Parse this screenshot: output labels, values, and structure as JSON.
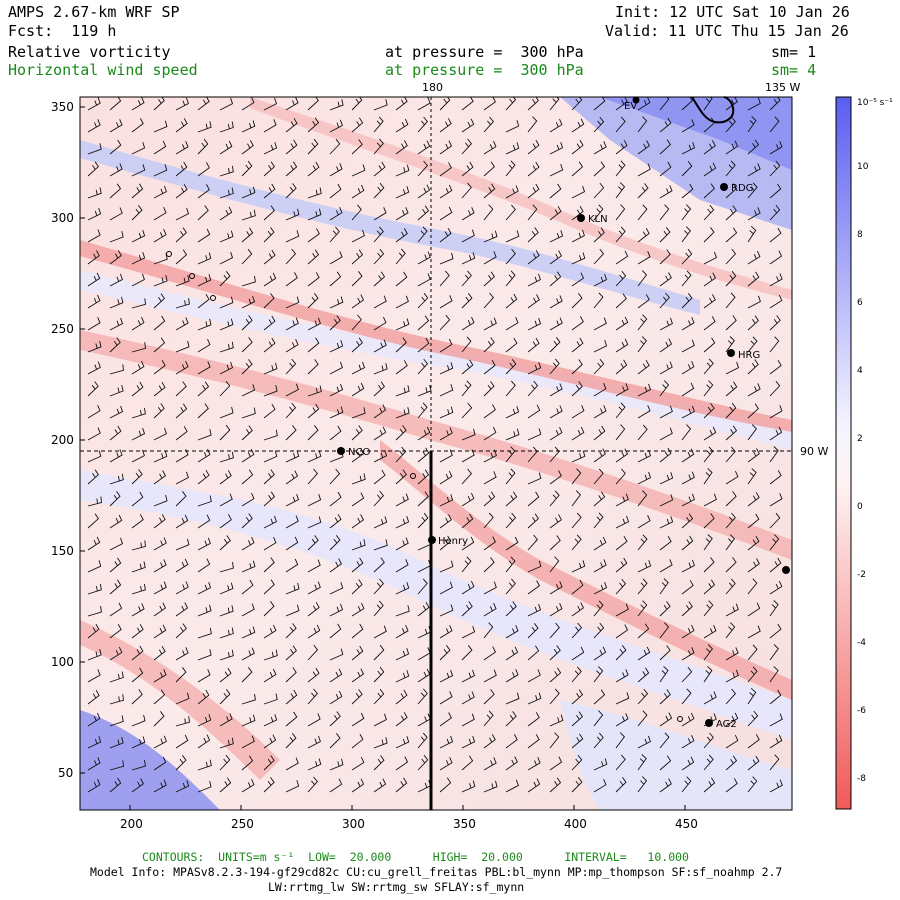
{
  "header": {
    "model_title": "AMPS 2.67-km WRF SP",
    "forecast": "Fcst:  119 h",
    "init": "Init: 12 UTC Sat 10 Jan 26",
    "valid": "Valid: 11 UTC Thu 15 Jan 26",
    "field1_name": "Relative vorticity",
    "field1_level": "at pressure =  300 hPa",
    "field1_smooth": "sm= 1",
    "field2_name": "Horizontal wind speed",
    "field2_level": "at pressure =  300 hPa",
    "field2_smooth": "sm= 4"
  },
  "map_labels": {
    "meridian_180": "180",
    "meridian_135w": "135 W",
    "meridian_90w": "90 W"
  },
  "axes": {
    "x_ticks": [
      "200",
      "250",
      "300",
      "350",
      "400",
      "450"
    ],
    "y_ticks": [
      "350",
      "300",
      "250",
      "200",
      "150",
      "100",
      "50"
    ]
  },
  "stations": [
    {
      "name": "RDG"
    },
    {
      "name": "KLN"
    },
    {
      "name": "HRG"
    },
    {
      "name": "NCO"
    },
    {
      "name": "Henry"
    },
    {
      "name": "AG2"
    },
    {
      "name": "EV"
    }
  ],
  "colorbar": {
    "unit": "10⁻⁵ s⁻¹",
    "labels": [
      "10",
      "8",
      "6",
      "4",
      "2",
      "0",
      "-2",
      "-4",
      "-6",
      "-8"
    ],
    "positive_color": "#5a5ef0",
    "negative_color": "#f05a5a"
  },
  "footer": {
    "contours": "CONTOURS:  UNITS=m s⁻¹  LOW=  20.000      HIGH=  20.000      INTERVAL=   10.000",
    "model_info": "Model Info: MPASv8.2.3-194-gf29cd82c CU:cu_grell_freitas PBL:bl_mynn MP:mp_thompson SF:sf_noahmp 2.7",
    "physics": "LW:rrtmg_lw SW:rrtmg_sw SFLAY:sf_mynn"
  }
}
